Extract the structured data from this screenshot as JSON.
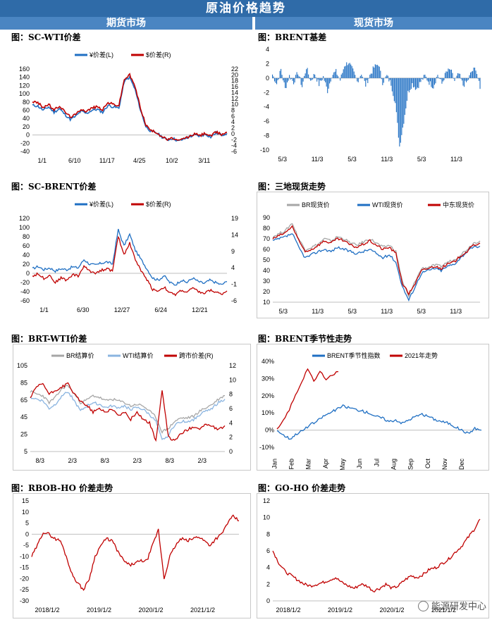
{
  "banner": "原油价格趋势",
  "sections": {
    "left": "期货市场",
    "right": "现货市场"
  },
  "watermark": "能源研发中心",
  "chart_data": [
    {
      "id": "c1",
      "type": "line",
      "title": "图：SC-WTI价差",
      "x_ticks": [
        "1/1",
        "6/10",
        "11/17",
        "4/25",
        "10/2",
        "3/11"
      ],
      "y_left": {
        "min": -40,
        "max": 160,
        "ticks": [
          "160",
          "140",
          "120",
          "100",
          "80",
          "60",
          "40",
          "20",
          "0",
          "-20",
          "-40"
        ]
      },
      "y_right": {
        "min": -6,
        "max": 22,
        "ticks": [
          "22",
          "20",
          "18",
          "16",
          "14",
          "12",
          "10",
          "8",
          "6",
          "4",
          "2",
          "0",
          "-2",
          "-4",
          "-6"
        ]
      },
      "grid": "horizontal-zero",
      "legend": "top",
      "series": [
        {
          "name": "¥价差(L)",
          "color": "#1f6fc3",
          "axis": "left",
          "y": [
            72,
            70,
            60,
            68,
            55,
            64,
            50,
            38,
            45,
            58,
            52,
            60,
            62,
            55,
            72,
            68,
            65,
            130,
            140,
            110,
            60,
            20,
            8,
            5,
            -5,
            -12,
            -8,
            -15,
            -10,
            -5,
            0,
            -3,
            2,
            -5,
            5,
            0,
            4
          ]
        },
        {
          "name": "$价差(R)",
          "color": "#c00000",
          "axis": "right",
          "y": [
            11,
            10.5,
            9,
            10,
            8,
            9.5,
            7.5,
            5.8,
            6.5,
            8.5,
            7.6,
            8.8,
            9.2,
            8.2,
            10.6,
            10,
            9.6,
            18.5,
            20,
            16,
            8.8,
            3,
            1,
            0.5,
            -1,
            -2,
            -1.5,
            -2.5,
            -1.6,
            -1,
            0,
            -0.6,
            0.2,
            -0.8,
            0.6,
            -0.2,
            0.5
          ]
        }
      ]
    },
    {
      "id": "c2",
      "type": "bar",
      "title": "图：BRENT基差",
      "x_ticks": [
        "5/3",
        "11/3",
        "5/3",
        "11/3",
        "5/3",
        "11/3"
      ],
      "y_left": {
        "min": -10,
        "max": 4,
        "ticks": [
          "4",
          "2",
          "0",
          "-2",
          "-4",
          "-6",
          "-8",
          "-10"
        ]
      },
      "series": [
        {
          "name": "BRENT基差",
          "color": "#1f6fc3",
          "y": [
            0.5,
            -0.8,
            1.2,
            -1.5,
            0.3,
            -0.6,
            0.8,
            -1.2,
            1.5,
            -0.4,
            0.6,
            -0.9,
            0.2,
            -1.8,
            0.4,
            0.9,
            -0.3,
            1.8,
            2.2,
            1.0,
            -0.5,
            0.7,
            -1.0,
            0.4,
            1.5,
            2.0,
            -0.6,
            0.3,
            -0.8,
            -3.5,
            -9.5,
            -6.0,
            -2.0,
            -0.8,
            -1.5,
            -0.5,
            0.3,
            -0.6,
            -1.2,
            0.5,
            -0.8,
            0.8,
            1.2,
            -0.4,
            0.6,
            -1.0,
            -0.5,
            0.9,
            1.4,
            -1.5
          ]
        }
      ]
    },
    {
      "id": "c3",
      "type": "line",
      "title": "图：SC-BRENT价差",
      "x_ticks": [
        "1/1",
        "6/30",
        "12/27",
        "6/24",
        "12/21"
      ],
      "y_left": {
        "min": -60,
        "max": 120,
        "ticks": [
          "120",
          "100",
          "80",
          "60",
          "40",
          "20",
          "0",
          "-20",
          "-40",
          "-60"
        ]
      },
      "y_right": {
        "min": -6,
        "max": 19,
        "ticks": [
          "19",
          "14",
          "9",
          "4",
          "-1",
          "-6"
        ]
      },
      "grid": "horizontal-zero",
      "legend": "top",
      "series": [
        {
          "name": "¥价差(L)",
          "color": "#1f6fc3",
          "axis": "left",
          "y": [
            10,
            15,
            8,
            12,
            5,
            10,
            8,
            14,
            12,
            30,
            20,
            18,
            22,
            25,
            20,
            95,
            60,
            85,
            50,
            30,
            10,
            -10,
            -15,
            -5,
            -20,
            -25,
            -15,
            -20,
            -10,
            -18,
            -22,
            -15,
            -20,
            -25,
            -18
          ]
        },
        {
          "name": "$价差(R)",
          "color": "#c00000",
          "axis": "right",
          "y": [
            1.5,
            2.2,
            0.8,
            1.8,
            -0.5,
            1.0,
            0.2,
            2.0,
            1.5,
            4.5,
            3.0,
            2.5,
            3.2,
            3.8,
            3.0,
            13.5,
            8.0,
            11.5,
            6.5,
            3.0,
            0.5,
            -2.5,
            -3.0,
            -1.8,
            -3.6,
            -4.2,
            -2.8,
            -3.4,
            -2.2,
            -3.2,
            -3.8,
            -2.8,
            -3.3,
            -4.0,
            -3.0
          ]
        }
      ]
    },
    {
      "id": "c4",
      "type": "line",
      "title": "图：三地现货走势",
      "x_ticks": [
        "5/3",
        "11/3",
        "5/3",
        "11/3",
        "5/3",
        "11/3"
      ],
      "y_left": {
        "min": 10,
        "max": 90,
        "ticks": [
          "90",
          "80",
          "70",
          "60",
          "50",
          "40",
          "30",
          "20",
          "10"
        ]
      },
      "legend": "top",
      "series": [
        {
          "name": "BR现货价",
          "color": "#a6a6a6",
          "y": [
            72,
            75,
            78,
            85,
            70,
            60,
            62,
            65,
            70,
            68,
            72,
            70,
            66,
            64,
            67,
            70,
            66,
            62,
            64,
            58,
            30,
            15,
            30,
            42,
            43,
            45,
            44,
            48,
            50,
            55,
            60,
            66,
            68
          ]
        },
        {
          "name": "WTI现货价",
          "color": "#1f6fc3",
          "y": [
            68,
            70,
            72,
            75,
            62,
            52,
            55,
            58,
            60,
            58,
            62,
            60,
            58,
            56,
            58,
            60,
            56,
            52,
            55,
            48,
            25,
            12,
            25,
            38,
            40,
            42,
            40,
            44,
            46,
            52,
            58,
            62,
            63
          ]
        },
        {
          "name": "中东现货价",
          "color": "#c00000",
          "y": [
            70,
            73,
            76,
            82,
            68,
            58,
            60,
            64,
            68,
            66,
            70,
            68,
            64,
            62,
            65,
            68,
            64,
            60,
            62,
            56,
            28,
            18,
            28,
            40,
            42,
            44,
            42,
            46,
            48,
            54,
            58,
            64,
            66
          ]
        }
      ]
    },
    {
      "id": "c5",
      "type": "line",
      "title": "图：BRT-WTI价差",
      "x_ticks": [
        "8/3",
        "2/3",
        "8/3",
        "2/3",
        "8/3",
        "2/3"
      ],
      "y_left": {
        "min": 5,
        "max": 105,
        "ticks": [
          "105",
          "85",
          "65",
          "45",
          "25",
          "5"
        ]
      },
      "y_right": {
        "min": 0,
        "max": 12,
        "ticks": [
          "12",
          "10",
          "8",
          "6",
          "4",
          "2",
          "0"
        ]
      },
      "legend": "top",
      "series": [
        {
          "name": "BR结算价",
          "color": "#a6a6a6",
          "axis": "left",
          "y": [
            75,
            72,
            70,
            62,
            68,
            78,
            82,
            72,
            62,
            65,
            70,
            68,
            64,
            66,
            64,
            62,
            58,
            60,
            58,
            52,
            45,
            28,
            32,
            40,
            44,
            44,
            46,
            52,
            56,
            60,
            66,
            70
          ]
        },
        {
          "name": "WTI结算价",
          "color": "#8ab4e0",
          "axis": "left",
          "y": [
            68,
            66,
            64,
            55,
            60,
            70,
            75,
            64,
            52,
            58,
            62,
            60,
            56,
            58,
            56,
            58,
            54,
            56,
            54,
            48,
            40,
            18,
            24,
            36,
            40,
            40,
            42,
            48,
            52,
            56,
            62,
            66
          ]
        },
        {
          "name": "跨市价差(R)",
          "color": "#c00000",
          "axis": "right",
          "y": [
            7.5,
            9,
            9.5,
            8,
            8.5,
            9,
            9.5,
            8,
            7,
            6.5,
            5.5,
            6,
            5.5,
            6,
            5,
            5.5,
            4.5,
            5.5,
            4.5,
            4,
            1.5,
            8.5,
            2,
            1.5,
            2.5,
            3,
            3.5,
            3.2,
            3.8,
            3.5,
            3.0,
            3.6
          ]
        }
      ]
    },
    {
      "id": "c6",
      "type": "line",
      "title": "图：BRENT季节性走势",
      "x_ticks": [
        "Jan",
        "Feb",
        "Mar",
        "Apr",
        "May",
        "Jun",
        "Jul",
        "Aug",
        "Sep",
        "Oct",
        "Nov",
        "Dec"
      ],
      "y_left": {
        "min": -10,
        "max": 40,
        "ticks": [
          "40%",
          "30%",
          "20%",
          "10%",
          "0%",
          "-10%"
        ]
      },
      "legend": "top",
      "series": [
        {
          "name": "BRENT季节性指数",
          "color": "#1f6fc3",
          "y": [
            0,
            -3,
            -5,
            -2,
            0,
            3,
            5,
            8,
            10,
            12,
            14,
            13,
            12,
            11,
            10,
            8,
            7,
            5,
            6,
            4,
            6,
            8,
            9,
            8,
            6,
            5,
            4,
            2,
            0,
            -2,
            1,
            0
          ]
        },
        {
          "name": "2021年走势",
          "color": "#c00000",
          "y": [
            0,
            5,
            12,
            20,
            28,
            36,
            28,
            34,
            30,
            32,
            34
          ]
        }
      ]
    },
    {
      "id": "c7",
      "type": "line",
      "title": "图：RBOB-HO 价差走势",
      "x_ticks": [
        "2018/1/2",
        "2019/1/2",
        "2020/1/2",
        "2021/1/2"
      ],
      "y_left": {
        "min": -30,
        "max": 15,
        "ticks": [
          "15",
          "10",
          "5",
          "0",
          "-5",
          "-10",
          "-15",
          "-20",
          "-25",
          "-30"
        ]
      },
      "series": [
        {
          "name": "RBOB-HO",
          "color": "#c00000",
          "y": [
            -10,
            -5,
            1,
            0,
            -2,
            -3,
            -10,
            -18,
            -22,
            -25,
            -20,
            -10,
            -5,
            -2,
            -3,
            -8,
            -12,
            -14,
            -13,
            -12,
            -12,
            -5,
            2,
            -20,
            -10,
            -5,
            -2,
            -3,
            -2,
            -1,
            -3,
            -5,
            -2,
            0,
            5,
            8,
            6
          ]
        }
      ]
    },
    {
      "id": "c8",
      "type": "line",
      "title": "图：GO-HO 价差走势",
      "x_ticks": [
        "2018/1/2",
        "2019/1/2",
        "2020/1/2",
        "2021/1/2"
      ],
      "y_left": {
        "min": 0,
        "max": 12,
        "ticks": [
          "12",
          "10",
          "8",
          "6",
          "4",
          "2",
          "0"
        ]
      },
      "series": [
        {
          "name": "GO-HO",
          "color": "#c00000",
          "y": [
            6,
            4.5,
            3.5,
            3,
            2.5,
            2,
            1.8,
            2,
            2.2,
            2.5,
            2.8,
            2.2,
            1.8,
            1.5,
            2,
            1.8,
            1.2,
            1.5,
            2,
            1.5,
            1.8,
            2.5,
            3,
            2.8,
            3.2,
            3.8,
            4,
            4.5,
            5,
            5.8,
            6.5,
            7.5,
            8.5,
            9.8
          ]
        }
      ]
    }
  ]
}
